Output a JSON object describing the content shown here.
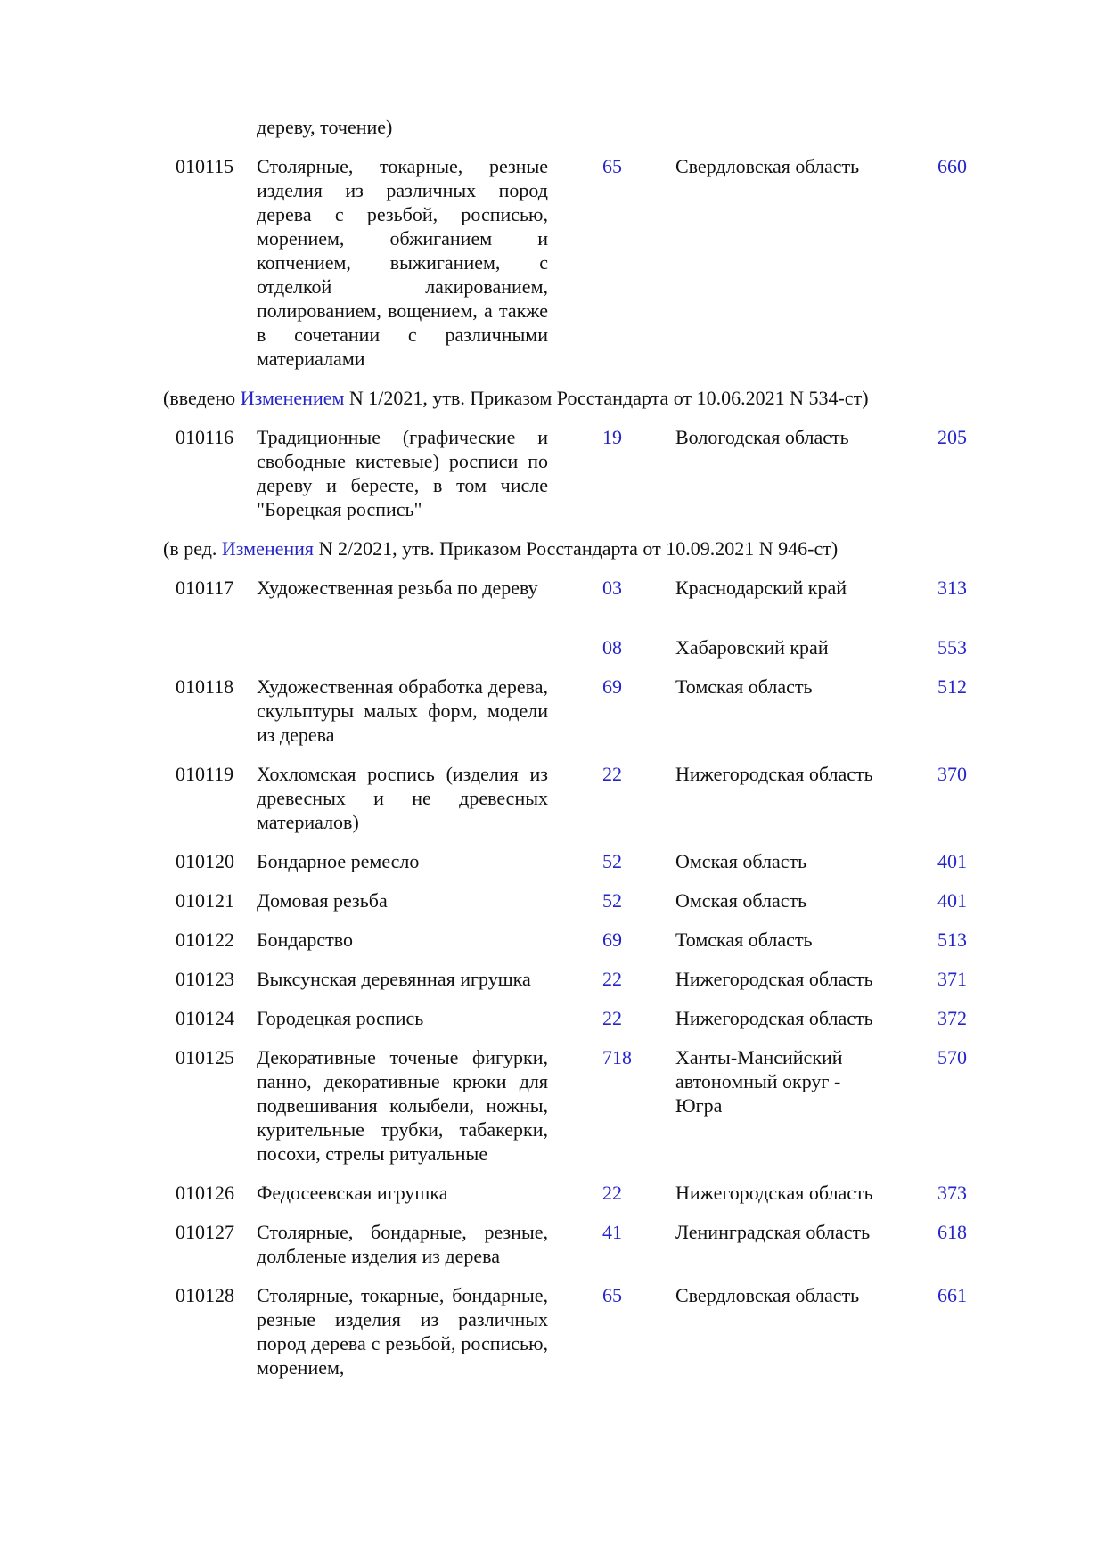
{
  "document": {
    "colors": {
      "link_blue": "#2424c8",
      "text": "#111111",
      "background": "#ffffff"
    },
    "entries": [
      {
        "type": "continuation",
        "text": "дереву, точение)"
      },
      {
        "type": "row",
        "code": "010115",
        "description": "Столярные, токарные, резные изделия из различных пород дерева с резьбой, росписью, морением, обжиганием и копчением, выжиганием, с отделкой лакированием, полированием, вощением, а также в сочетании с различными материалами",
        "regions": [
          {
            "code": "65",
            "name": "Свердловская область",
            "value": "660"
          }
        ]
      },
      {
        "type": "note",
        "prefix": "(введено ",
        "link": "Изменением",
        "suffix": " N 1/2021, утв. Приказом Росстандарта от 10.06.2021 N 534-ст)"
      },
      {
        "type": "row",
        "code": "010116",
        "description": "Традиционные (графические и свободные кистевые) росписи по дереву и бересте, в том числе \"Борецкая роспись\"",
        "regions": [
          {
            "code": "19",
            "name": "Вологодская область",
            "value": "205"
          }
        ]
      },
      {
        "type": "note",
        "prefix": "(в ред. ",
        "link": "Изменения",
        "suffix": " N 2/2021, утв. Приказом Росстандарта от 10.09.2021 N 946-ст)"
      },
      {
        "type": "row",
        "code": "010117",
        "description": "Художественная резьба по дереву",
        "regions": [
          {
            "code": "03",
            "name": "Краснодарский край",
            "value": "313"
          },
          {
            "code": "08",
            "name": "Хабаровский край",
            "value": "553"
          }
        ]
      },
      {
        "type": "row",
        "code": "010118",
        "description": "Художественная обработка дерева, скульптуры малых форм, модели из дерева",
        "regions": [
          {
            "code": "69",
            "name": "Томская область",
            "value": "512"
          }
        ]
      },
      {
        "type": "row",
        "code": "010119",
        "description": "Хохломская роспись (изделия из древесных и не древесных материалов)",
        "regions": [
          {
            "code": "22",
            "name": "Нижегородская область",
            "value": "370"
          }
        ]
      },
      {
        "type": "row",
        "code": "010120",
        "description": "Бондарное ремесло",
        "regions": [
          {
            "code": "52",
            "name": "Омская область",
            "value": "401"
          }
        ]
      },
      {
        "type": "row",
        "code": "010121",
        "description": "Домовая резьба",
        "regions": [
          {
            "code": "52",
            "name": "Омская область",
            "value": "401"
          }
        ]
      },
      {
        "type": "row",
        "code": "010122",
        "description": "Бондарство",
        "regions": [
          {
            "code": "69",
            "name": "Томская область",
            "value": "513"
          }
        ]
      },
      {
        "type": "row",
        "code": "010123",
        "description": "Выксунская деревянная игрушка",
        "regions": [
          {
            "code": "22",
            "name": "Нижегородская область",
            "value": "371"
          }
        ]
      },
      {
        "type": "row",
        "code": "010124",
        "description": "Городецкая роспись",
        "regions": [
          {
            "code": "22",
            "name": "Нижегородская область",
            "value": "372"
          }
        ]
      },
      {
        "type": "row",
        "code": "010125",
        "description": "Декоративные точеные фигурки, панно, декоративные крюки для подвешивания колыбели, ножны, курительные трубки, табакерки, посохи, стрелы ритуальные",
        "regions": [
          {
            "code": "718",
            "name": "Ханты-Мансийский автономный округ - Югра",
            "value": "570"
          }
        ]
      },
      {
        "type": "row",
        "code": "010126",
        "description": "Федосеевская игрушка",
        "regions": [
          {
            "code": "22",
            "name": "Нижегородская область",
            "value": "373"
          }
        ]
      },
      {
        "type": "row",
        "code": "010127",
        "description": "Столярные, бондарные, резные, долбленые изделия из дерева",
        "regions": [
          {
            "code": "41",
            "name": "Ленинградская область",
            "value": "618"
          }
        ]
      },
      {
        "type": "row",
        "code": "010128",
        "description": "Столярные, токарные, бондарные, резные изделия из различных пород дерева с резьбой, росписью, морением,",
        "regions": [
          {
            "code": "65",
            "name": "Свердловская область",
            "value": "661"
          }
        ]
      }
    ]
  }
}
